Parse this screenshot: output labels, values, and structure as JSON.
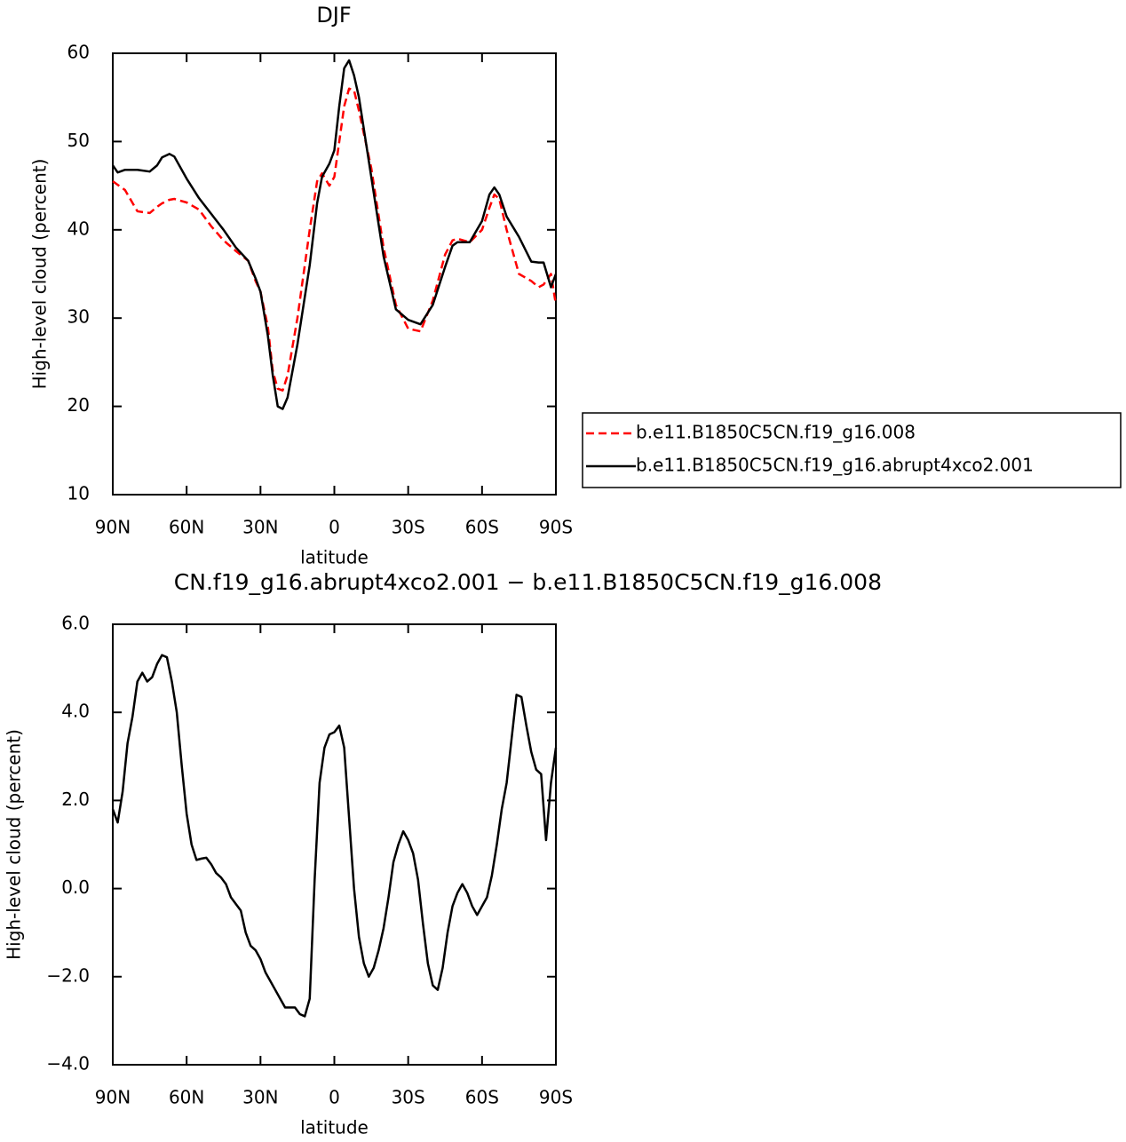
{
  "chart_data": [
    {
      "type": "line",
      "title": "DJF",
      "xlabel": "latitude",
      "ylabel": "High-level cloud (percent)",
      "x": [
        90,
        88,
        85,
        80,
        75,
        72,
        70,
        67,
        65,
        60,
        55,
        50,
        45,
        40,
        35,
        32,
        30,
        27,
        25,
        23,
        21,
        19,
        15,
        10,
        7,
        5,
        2,
        0,
        -2,
        -4,
        -6,
        -8,
        -10,
        -15,
        -20,
        -25,
        -30,
        -35,
        -40,
        -45,
        -48,
        -50,
        -55,
        -60,
        -63,
        -65,
        -67,
        -70,
        -75,
        -80,
        -83,
        -85,
        -88,
        -90
      ],
      "series": [
        {
          "name": "b.e11.B1850C5CN.f19_g16.008",
          "color": "#ff0000",
          "dash": true,
          "values": [
            45.5,
            45.1,
            44.5,
            42.1,
            41.9,
            42.6,
            43,
            43.4,
            43.5,
            43.1,
            42.3,
            40.4,
            38.8,
            37.6,
            36.5,
            34.2,
            33,
            29,
            24,
            22,
            21.8,
            23.5,
            30,
            40,
            45.5,
            46.4,
            45,
            46,
            50,
            54,
            56,
            55.8,
            53.5,
            47,
            38,
            31.5,
            28.8,
            28.5,
            32,
            37.2,
            38.8,
            39,
            38.6,
            40,
            42.5,
            44,
            43.5,
            40,
            35,
            34.2,
            33.5,
            33.8,
            35,
            31.5
          ]
        },
        {
          "name": "b.e11.B1850C5CN.f19_g16.abrupt4xco2.001",
          "color": "#000000",
          "dash": false,
          "values": [
            47.3,
            46.5,
            46.8,
            46.8,
            46.6,
            47.3,
            48.2,
            48.6,
            48.3,
            45.8,
            43.6,
            41.8,
            40,
            38,
            36.5,
            34.5,
            33,
            28,
            23.5,
            20,
            19.7,
            21,
            27,
            36,
            43,
            46,
            47.5,
            49,
            54,
            58.3,
            59.2,
            57.5,
            55,
            46,
            37,
            31,
            29.8,
            29.3,
            31.5,
            35.8,
            38.2,
            38.6,
            38.6,
            41,
            44,
            44.8,
            44,
            41.5,
            39.2,
            36.4,
            36.3,
            36.3,
            33.5,
            35
          ]
        }
      ],
      "xlim": [
        90,
        -90
      ],
      "xticks": [
        {
          "value": 90,
          "label": "90N"
        },
        {
          "value": 60,
          "label": "60N"
        },
        {
          "value": 30,
          "label": "30N"
        },
        0,
        {
          "value": -30,
          "label": "30S"
        },
        {
          "value": -60,
          "label": "60S"
        },
        {
          "value": -90,
          "label": "90S"
        }
      ],
      "ylim": [
        10,
        60
      ],
      "yticks": [
        10,
        20,
        30,
        40,
        50,
        60
      ],
      "legend": "right"
    },
    {
      "type": "line",
      "title": "CN.f19_g16.abrupt4xco2.001 − b.e11.B1850C5CN.f19_g16.008",
      "xlabel": "latitude",
      "ylabel": "High-level cloud (percent)",
      "x": [
        90,
        88,
        86,
        84,
        82,
        80,
        78,
        76,
        74,
        72,
        70,
        68,
        66,
        64,
        62,
        60,
        58,
        56,
        54,
        52,
        50,
        48,
        46,
        44,
        42,
        40,
        38,
        36,
        34,
        32,
        30,
        28,
        26,
        24,
        22,
        20,
        18,
        16,
        14,
        12,
        10,
        8,
        6,
        4,
        2,
        0,
        -2,
        -4,
        -6,
        -8,
        -10,
        -12,
        -14,
        -16,
        -18,
        -20,
        -22,
        -24,
        -26,
        -28,
        -30,
        -32,
        -34,
        -36,
        -38,
        -40,
        -42,
        -44,
        -46,
        -48,
        -50,
        -52,
        -54,
        -56,
        -58,
        -60,
        -62,
        -64,
        -66,
        -68,
        -70,
        -72,
        -74,
        -76,
        -78,
        -80,
        -82,
        -84,
        -86,
        -88,
        -90
      ],
      "series": [
        {
          "color": "#000000",
          "dash": false,
          "values": [
            1.8,
            1.5,
            2.2,
            3.3,
            3.9,
            4.7,
            4.9,
            4.7,
            4.8,
            5.1,
            5.3,
            5.25,
            4.7,
            4.0,
            2.8,
            1.7,
            1.0,
            0.65,
            0.68,
            0.7,
            0.55,
            0.35,
            0.25,
            0.1,
            -0.2,
            -0.35,
            -0.5,
            -1.0,
            -1.3,
            -1.4,
            -1.6,
            -1.9,
            -2.1,
            -2.3,
            -2.5,
            -2.7,
            -2.7,
            -2.7,
            -2.85,
            -2.9,
            -2.5,
            0.2,
            2.4,
            3.2,
            3.5,
            3.55,
            3.7,
            3.2,
            1.6,
            0,
            -1.1,
            -1.7,
            -2.0,
            -1.8,
            -1.4,
            -0.9,
            -0.2,
            0.6,
            1.0,
            1.3,
            1.1,
            0.8,
            0.2,
            -0.8,
            -1.7,
            -2.2,
            -2.3,
            -1.8,
            -1.0,
            -0.4,
            -0.1,
            0.1,
            -0.1,
            -0.4,
            -0.6,
            -0.4,
            -0.2,
            0.3,
            1.0,
            1.8,
            2.4,
            3.4,
            4.4,
            4.35,
            3.7,
            3.1,
            2.7,
            2.6,
            1.1,
            2.4,
            3.2
          ]
        }
      ],
      "xlim": [
        90,
        -90
      ],
      "xticks": [
        {
          "value": 90,
          "label": "90N"
        },
        {
          "value": 60,
          "label": "60N"
        },
        {
          "value": 30,
          "label": "30N"
        },
        0,
        {
          "value": -30,
          "label": "30S"
        },
        {
          "value": -60,
          "label": "60S"
        },
        {
          "value": -90,
          "label": "90S"
        }
      ],
      "ylim": [
        -4,
        6
      ],
      "yticks": [
        {
          "value": -4,
          "label": "−4.0"
        },
        {
          "value": -2,
          "label": "−2.0"
        },
        {
          "value": 0,
          "label": "0.0"
        },
        {
          "value": 2,
          "label": "2.0"
        },
        {
          "value": 4,
          "label": "4.0"
        },
        {
          "value": 6,
          "label": "6.0"
        }
      ]
    }
  ]
}
